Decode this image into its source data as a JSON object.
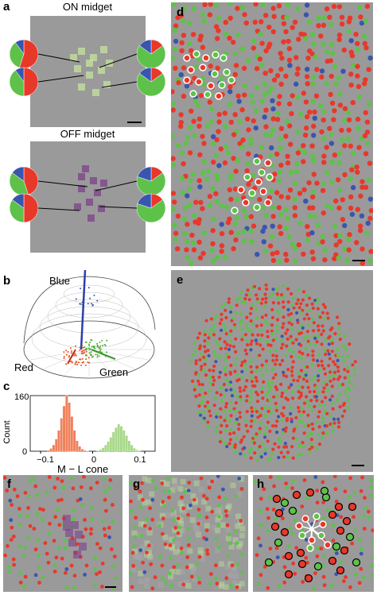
{
  "panels": {
    "a": {
      "letter": "a",
      "title_top": "ON midget",
      "title_bottom": "OFF midget"
    },
    "b": {
      "letter": "b",
      "labels": {
        "blue": "Blue",
        "red": "Red",
        "green": "Green"
      }
    },
    "c": {
      "letter": "c",
      "ylabel": "Count",
      "xlabel": "M − L cone",
      "ytick_top": "160",
      "ytick_bottom": "0",
      "xticks": [
        "−0.1",
        "0",
        "0.1"
      ]
    },
    "d": {
      "letter": "d"
    },
    "e": {
      "letter": "e"
    },
    "f": {
      "letter": "f"
    },
    "g": {
      "letter": "g"
    },
    "h": {
      "letter": "h"
    }
  },
  "colors": {
    "red": "#e8382a",
    "green": "#5ec24a",
    "blue": "#3a55b0",
    "background": "#9a9a9a"
  },
  "chart_data": {
    "type": "bar",
    "xlabel": "M − L cone",
    "ylabel": "Count",
    "xlim": [
      -0.12,
      0.12
    ],
    "ylim": [
      0,
      160
    ],
    "series": [
      {
        "color": "#f0805a",
        "x": [
          -0.085,
          -0.08,
          -0.075,
          -0.07,
          -0.065,
          -0.06,
          -0.055,
          -0.05,
          -0.045,
          -0.04,
          -0.035,
          -0.03,
          -0.025,
          -0.02,
          -0.015,
          -0.01
        ],
        "values": [
          3,
          8,
          18,
          35,
          60,
          95,
          130,
          160,
          140,
          100,
          60,
          30,
          14,
          6,
          3,
          1
        ]
      },
      {
        "color": "#a8d88a",
        "x": [
          0.01,
          0.015,
          0.02,
          0.025,
          0.03,
          0.035,
          0.04,
          0.045,
          0.05,
          0.055,
          0.06,
          0.065,
          0.07,
          0.075,
          0.08,
          0.085,
          0.09
        ],
        "values": [
          2,
          5,
          10,
          18,
          28,
          40,
          55,
          68,
          78,
          72,
          60,
          45,
          30,
          18,
          9,
          4,
          2
        ]
      }
    ]
  }
}
